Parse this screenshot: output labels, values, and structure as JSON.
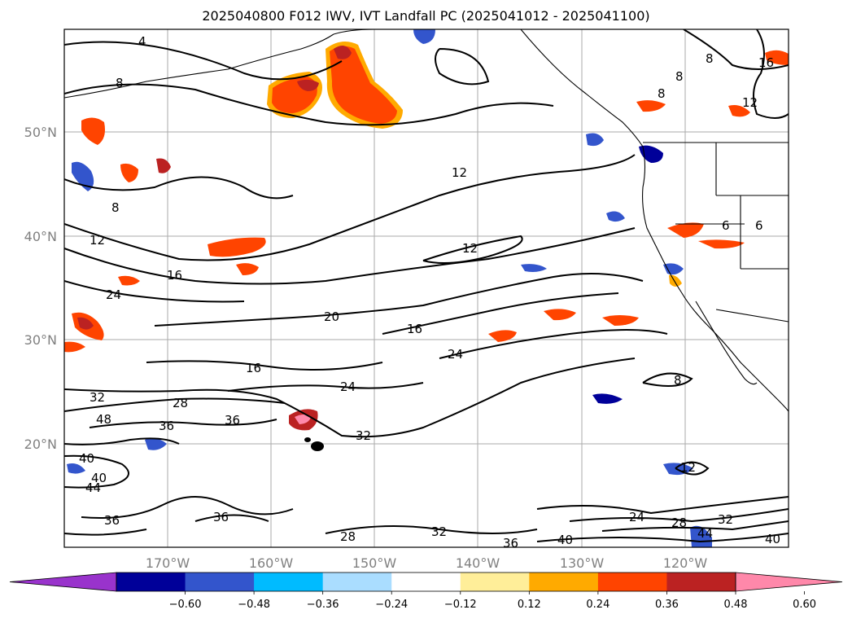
{
  "title": "2025040800 F012 IWV, IVT Landfall PC (2025041012 - 2025041100)",
  "map": {
    "lat_labels": [
      "50°N",
      "40°N",
      "30°N",
      "20°N"
    ],
    "lon_labels": [
      "170°W",
      "160°W",
      "150°W",
      "140°W",
      "130°W",
      "120°W"
    ],
    "contour_labels": [
      "4",
      "8",
      "8",
      "8",
      "8",
      "16",
      "12",
      "12",
      "8",
      "12",
      "12",
      "16",
      "24",
      "20",
      "16",
      "24",
      "16",
      "24",
      "32",
      "28",
      "36",
      "36",
      "48",
      "40",
      "40",
      "44",
      "36",
      "36",
      "32",
      "28",
      "32",
      "36",
      "40",
      "24",
      "28",
      "32",
      "44",
      "40",
      "12",
      "8",
      "6",
      "6"
    ]
  },
  "colorbar": {
    "colors": [
      "#9933cc",
      "#000099",
      "#3355cc",
      "#00bbff",
      "#aaddff",
      "#ffffff",
      "#ffee99",
      "#ffaa00",
      "#ff4400",
      "#bb2222",
      "#ff88aa"
    ],
    "tick_labels": [
      "−0.60",
      "−0.48",
      "−0.36",
      "−0.24",
      "−0.12",
      "0.12",
      "0.24",
      "0.36",
      "0.48",
      "0.60"
    ]
  },
  "legend_colors": {
    "coast": "#000000",
    "grid": "#aaaaaa",
    "contour": "#000000"
  }
}
